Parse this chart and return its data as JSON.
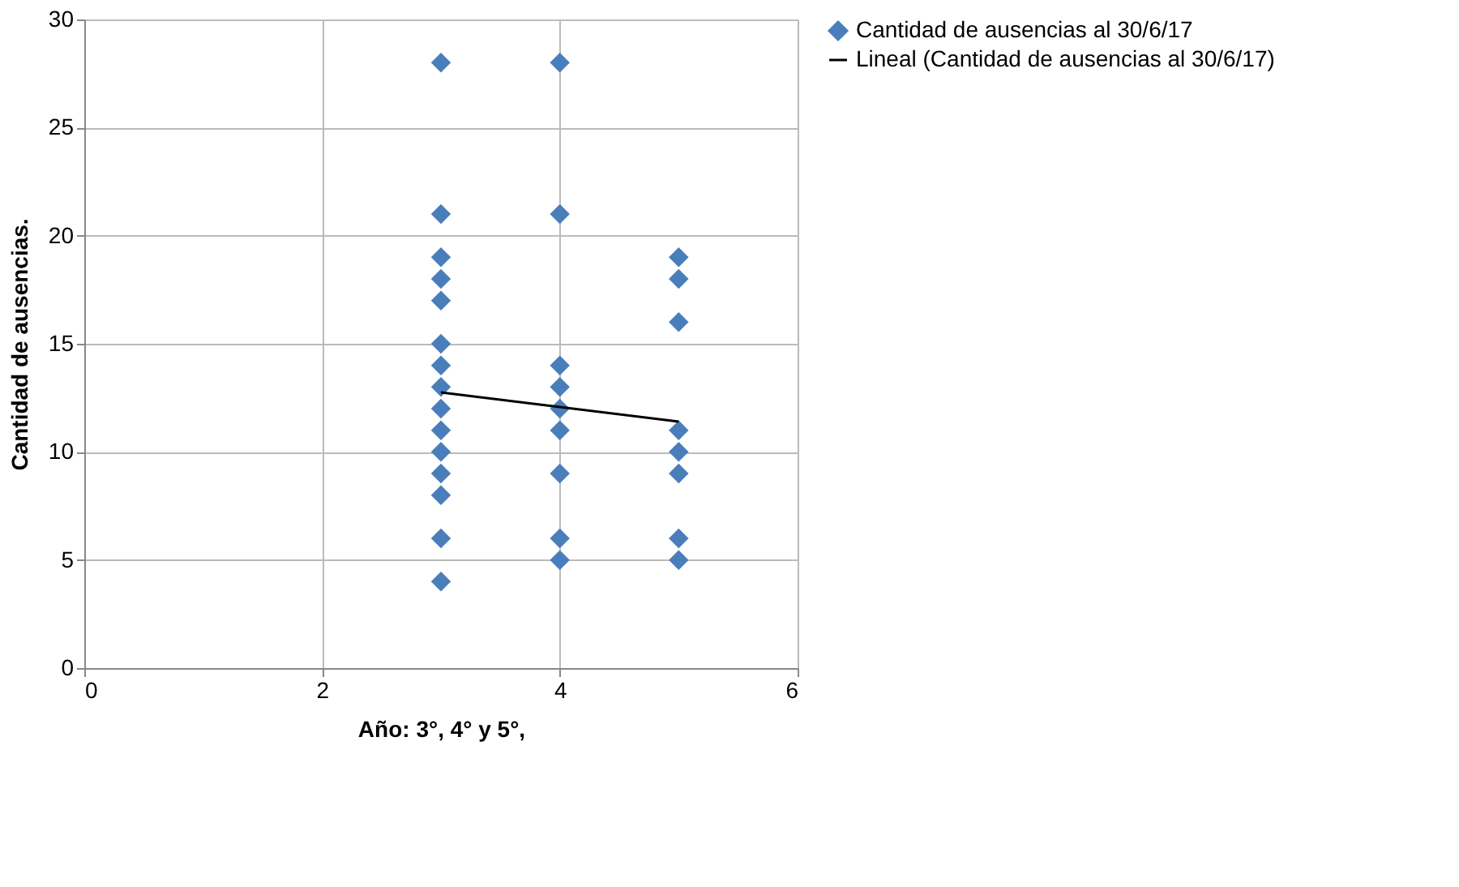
{
  "chart_data": {
    "type": "scatter",
    "xlabel": "Año: 3°, 4° y 5°,",
    "ylabel": "Cantidad de ausencias.",
    "xlim": [
      0,
      6
    ],
    "xticks": [
      0,
      2,
      4,
      6
    ],
    "ylim": [
      0,
      30
    ],
    "yticks": [
      0,
      5,
      10,
      15,
      20,
      25,
      30
    ],
    "grid": true,
    "legend": "right",
    "series": [
      {
        "name": "Cantidad de ausencias al 30/6/17",
        "color": "#4a7ebb",
        "marker": "diamond",
        "x": [
          3,
          3,
          3,
          3,
          3,
          3,
          3,
          3,
          3,
          3,
          3,
          3,
          3,
          3,
          3,
          4,
          4,
          4,
          4,
          4,
          4,
          4,
          4,
          4,
          5,
          5,
          5,
          5,
          5,
          5,
          5,
          5
        ],
        "values": [
          28,
          21,
          19,
          18,
          17,
          15,
          14,
          13,
          12,
          11,
          10,
          9,
          8,
          6,
          4,
          28,
          21,
          14,
          13,
          12,
          11,
          9,
          6,
          5,
          19,
          18,
          16,
          11,
          10,
          9,
          6,
          5
        ]
      },
      {
        "name": "Lineal (Cantidad de ausencias al 30/6/17)",
        "color": "#000000",
        "type": "line",
        "line_style": "solid",
        "x": [
          3,
          5
        ],
        "values": [
          12.75,
          11.4
        ]
      }
    ]
  }
}
